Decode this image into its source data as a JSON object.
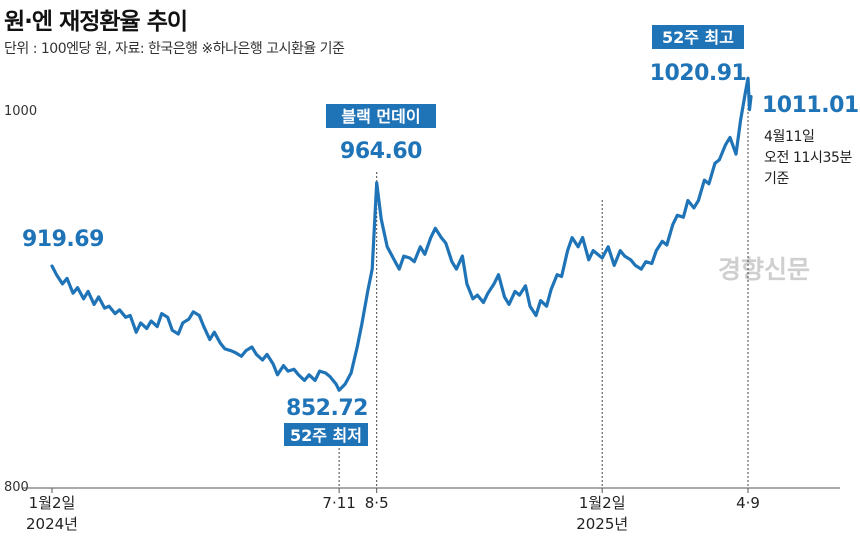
{
  "title": "원·엔 재정환율 추이",
  "subtitle": "단위 : 100엔당 원, 자료: 한국은행 ※하나은행 고시환율 기준",
  "watermark": "경향신문",
  "accent_color": "#1f73b7",
  "chart_data": {
    "type": "line",
    "title": "원·엔 재정환율 추이",
    "ylabel": "100엔당 원",
    "ylim": [
      800,
      1030
    ],
    "y_ticks": [
      800,
      1000
    ],
    "x_tick_labels": [
      {
        "date": "2024-01-02",
        "line1": "1월2일",
        "line2": "2024년"
      },
      {
        "date": "2024-07-11",
        "line1": "7·11",
        "line2": ""
      },
      {
        "date": "2024-08-05",
        "line1": "8·5",
        "line2": ""
      },
      {
        "date": "2025-01-02",
        "line1": "1월2일",
        "line2": "2025년"
      },
      {
        "date": "2025-04-09",
        "line1": "4·9",
        "line2": ""
      }
    ],
    "series": [
      {
        "x": [
          "2024-01-02",
          "2024-01-05",
          "2024-01-09",
          "2024-01-12",
          "2024-01-16",
          "2024-01-19",
          "2024-01-23",
          "2024-01-26",
          "2024-01-30",
          "2024-02-02",
          "2024-02-06",
          "2024-02-09",
          "2024-02-13",
          "2024-02-16",
          "2024-02-20",
          "2024-02-23",
          "2024-02-27",
          "2024-03-01",
          "2024-03-05",
          "2024-03-08",
          "2024-03-12",
          "2024-03-15",
          "2024-03-19",
          "2024-03-22",
          "2024-03-26",
          "2024-03-29",
          "2024-04-02",
          "2024-04-05",
          "2024-04-09",
          "2024-04-12",
          "2024-04-16",
          "2024-04-19",
          "2024-04-23",
          "2024-04-26",
          "2024-04-30",
          "2024-05-03",
          "2024-05-07",
          "2024-05-10",
          "2024-05-14",
          "2024-05-17",
          "2024-05-21",
          "2024-05-24",
          "2024-05-28",
          "2024-05-31",
          "2024-06-04",
          "2024-06-07",
          "2024-06-11",
          "2024-06-14",
          "2024-06-18",
          "2024-06-21",
          "2024-06-25",
          "2024-06-28",
          "2024-07-02",
          "2024-07-05",
          "2024-07-09",
          "2024-07-11",
          "2024-07-15",
          "2024-07-19",
          "2024-07-23",
          "2024-07-26",
          "2024-07-30",
          "2024-08-02",
          "2024-08-05",
          "2024-08-08",
          "2024-08-12",
          "2024-08-16",
          "2024-08-20",
          "2024-08-23",
          "2024-08-27",
          "2024-08-30",
          "2024-09-03",
          "2024-09-06",
          "2024-09-10",
          "2024-09-13",
          "2024-09-17",
          "2024-09-20",
          "2024-09-24",
          "2024-09-27",
          "2024-10-01",
          "2024-10-04",
          "2024-10-08",
          "2024-10-11",
          "2024-10-15",
          "2024-10-18",
          "2024-10-22",
          "2024-10-25",
          "2024-10-29",
          "2024-11-01",
          "2024-11-05",
          "2024-11-08",
          "2024-11-12",
          "2024-11-15",
          "2024-11-19",
          "2024-11-22",
          "2024-11-26",
          "2024-11-29",
          "2024-12-03",
          "2024-12-06",
          "2024-12-10",
          "2024-12-13",
          "2024-12-17",
          "2024-12-20",
          "2024-12-24",
          "2024-12-27",
          "2025-01-02",
          "2025-01-06",
          "2025-01-10",
          "2025-01-14",
          "2025-01-17",
          "2025-01-21",
          "2025-01-24",
          "2025-01-28",
          "2025-01-31",
          "2025-02-04",
          "2025-02-07",
          "2025-02-11",
          "2025-02-14",
          "2025-02-18",
          "2025-02-21",
          "2025-02-25",
          "2025-02-28",
          "2025-03-04",
          "2025-03-07",
          "2025-03-11",
          "2025-03-14",
          "2025-03-18",
          "2025-03-21",
          "2025-03-25",
          "2025-03-28",
          "2025-04-01",
          "2025-04-04",
          "2025-04-07",
          "2025-04-09",
          "2025-04-10",
          "2025-04-11"
        ],
        "values": [
          919.69,
          915,
          910,
          913,
          905,
          908,
          902,
          906,
          899,
          903,
          897,
          898,
          894,
          896,
          892,
          893,
          884,
          889,
          886,
          890,
          887,
          894,
          892,
          885,
          883,
          889,
          891,
          895,
          893,
          887,
          880,
          884,
          878,
          875,
          874,
          873,
          871,
          874,
          876,
          872,
          869,
          872,
          867,
          861,
          866,
          863,
          864,
          861,
          858,
          861,
          858,
          863,
          862,
          860,
          856,
          852.72,
          856,
          862,
          876,
          888,
          906,
          918,
          964.6,
          945,
          930,
          924,
          918,
          925,
          924,
          922,
          930,
          926,
          935,
          940,
          935,
          932,
          922,
          918,
          925,
          910,
          902,
          904,
          900,
          905,
          910,
          915,
          903,
          899,
          906,
          904,
          909,
          898,
          893,
          901,
          898,
          907,
          915,
          914,
          928,
          935,
          930,
          935,
          923,
          928,
          924,
          930,
          920,
          928,
          925,
          923,
          920,
          918,
          922,
          921,
          928,
          933,
          931,
          942,
          947,
          946,
          955,
          951,
          955,
          966,
          964,
          975,
          977,
          985,
          989,
          980,
          998,
          1012,
          1020.91,
          1004,
          1011.01
        ]
      }
    ],
    "annotations": [
      {
        "date": "2024-01-02",
        "value_text": "919.69",
        "tag": ""
      },
      {
        "date": "2024-07-11",
        "value_text": "852.72",
        "tag": "52주 최저"
      },
      {
        "date": "2024-08-05",
        "value_text": "964.60",
        "tag": "블랙 먼데이"
      },
      {
        "date": "2025-04-09",
        "value_text": "1020.91",
        "tag": "52주 최고"
      },
      {
        "date": "2025-04-11",
        "value_text": "1011.01",
        "tag": ""
      }
    ],
    "last_note": [
      "4월11일",
      "오전 11시35분",
      "기준"
    ]
  }
}
